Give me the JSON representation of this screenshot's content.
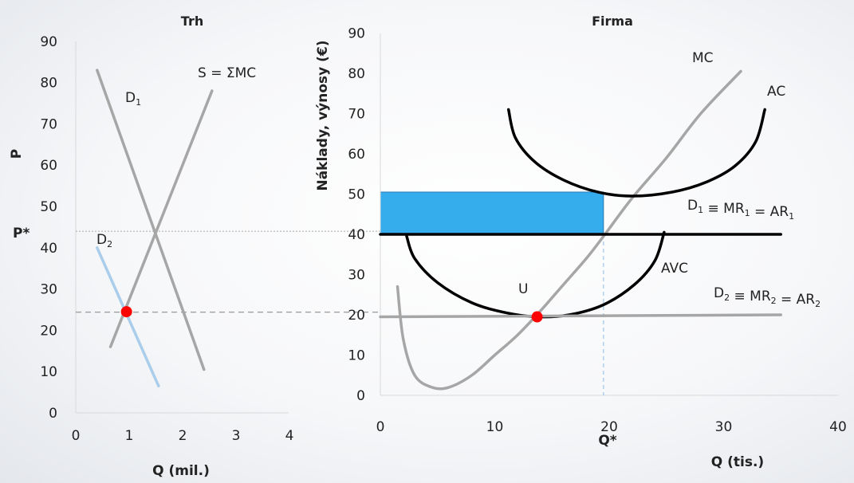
{
  "chart_data": [
    {
      "type": "line",
      "title": "Trh",
      "xlabel": "Q (mil.)",
      "ylabel": "P",
      "xlim": [
        0,
        4
      ],
      "ylim": [
        0,
        90
      ],
      "xticks": [
        "0",
        "1",
        "2",
        "3",
        "4"
      ],
      "yticks": [
        "0",
        "10",
        "20",
        "30",
        "40",
        "50",
        "60",
        "70",
        "80",
        "90"
      ],
      "price_marker": "P*",
      "price_marker_value": 44,
      "equilibrium_point": {
        "x": 0.95,
        "y": 24.5
      },
      "series": [
        {
          "name": "D1",
          "label_main": "D",
          "label_sub": "1",
          "color": "#a6a6a6",
          "points": [
            [
              0.4,
              83
            ],
            [
              2.4,
              10.5
            ]
          ]
        },
        {
          "name": "S = ΣMC",
          "label_main": "S = ΣMC",
          "label_sub": "",
          "color": "#a6a6a6",
          "points": [
            [
              0.65,
              16
            ],
            [
              2.55,
              78
            ]
          ]
        },
        {
          "name": "D2",
          "label_main": "D",
          "label_sub": "2",
          "color": "#a9cdea",
          "points": [
            [
              0.4,
              40
            ],
            [
              1.55,
              6.5
            ]
          ]
        }
      ]
    },
    {
      "type": "line",
      "title": "Firma",
      "xlabel": "Q (tis.)",
      "ylabel": "Náklady, výnosy (€)",
      "xlim": [
        0,
        40
      ],
      "ylim": [
        0,
        90
      ],
      "xticks": [
        "0",
        "10",
        "20",
        "30",
        "40"
      ],
      "yticks": [
        "0",
        "10",
        "20",
        "30",
        "40",
        "50",
        "60",
        "70",
        "80",
        "90"
      ],
      "quantity_marker": "Q*",
      "quantity_marker_value": 19.5,
      "shutdown_label": "U",
      "shutdown_point": {
        "x": 13.7,
        "y": 19.5
      },
      "profit_rectangle": {
        "x0": 0,
        "x1": 19.5,
        "y0": 40,
        "y1": 50.5,
        "color": "#35aded"
      },
      "series": [
        {
          "name": "MC",
          "label_main": "MC",
          "label_sub": "",
          "color": "#a6a6a6",
          "points": [
            [
              1.5,
              27
            ],
            [
              2,
              14
            ],
            [
              3,
              5
            ],
            [
              4.5,
              2
            ],
            [
              6,
              2
            ],
            [
              8,
              5
            ],
            [
              10,
              10
            ],
            [
              12,
              15
            ],
            [
              14,
              21
            ],
            [
              16,
              27.5
            ],
            [
              18,
              34
            ],
            [
              19.5,
              39.5
            ],
            [
              22,
              49
            ],
            [
              25,
              59
            ],
            [
              28,
              70
            ],
            [
              31.5,
              80.5
            ]
          ]
        },
        {
          "name": "AC",
          "label_main": "AC",
          "label_sub": "",
          "color": "#000000",
          "points": [
            [
              11.2,
              71
            ],
            [
              11.8,
              64
            ],
            [
              13.5,
              58
            ],
            [
              16,
              53.5
            ],
            [
              19,
              50.5
            ],
            [
              22,
              49.5
            ],
            [
              25.5,
              50.5
            ],
            [
              28.5,
              53
            ],
            [
              31,
              57
            ],
            [
              32.8,
              63
            ],
            [
              33.6,
              71
            ]
          ]
        },
        {
          "name": "AVC",
          "label_main": "AVC",
          "label_sub": "",
          "color": "#000000",
          "points": [
            [
              2.3,
              39.5
            ],
            [
              3,
              34
            ],
            [
              5,
              28
            ],
            [
              8,
              23
            ],
            [
              11,
              20.5
            ],
            [
              13.7,
              19.5
            ],
            [
              16.5,
              20
            ],
            [
              19.5,
              22.5
            ],
            [
              22.2,
              27.5
            ],
            [
              24,
              33.5
            ],
            [
              24.8,
              40.5
            ]
          ]
        },
        {
          "name": "D1 ≡ MR1 = AR1",
          "label_main": "D",
          "label_sub": "1",
          "label_rest": " ≡ MR",
          "label_sub2": "1",
          "label_rest2": " = AR",
          "label_sub3": "1",
          "color": "#000000",
          "points": [
            [
              0,
              40
            ],
            [
              35,
              40
            ]
          ]
        },
        {
          "name": "D2 ≡ MR2 = AR2",
          "label_main": "D",
          "label_sub": "2",
          "label_rest": " ≡ MR",
          "label_sub2": "2",
          "label_rest2": " = AR",
          "label_sub3": "2",
          "color": "#a6a6a6",
          "points": [
            [
              0,
              19.5
            ],
            [
              35,
              20
            ]
          ]
        }
      ]
    }
  ]
}
